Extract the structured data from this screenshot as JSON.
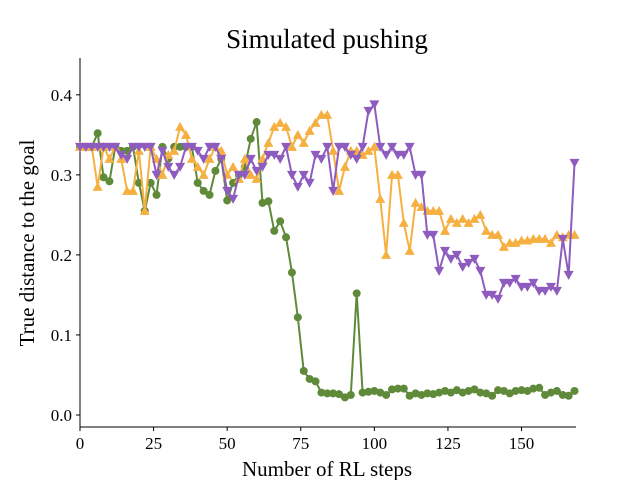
{
  "chart_data": {
    "type": "line",
    "title": "Simulated pushing",
    "xlabel": "Number of RL steps",
    "ylabel": "True distance to the goal",
    "x": [
      0,
      2,
      4,
      6,
      8,
      10,
      12,
      14,
      16,
      18,
      20,
      22,
      24,
      26,
      28,
      30,
      32,
      34,
      36,
      38,
      40,
      42,
      44,
      46,
      48,
      50,
      52,
      54,
      56,
      58,
      60,
      62,
      64,
      66,
      68,
      70,
      72,
      74,
      76,
      78,
      80,
      82,
      84,
      86,
      88,
      90,
      92,
      94,
      96,
      98,
      100,
      102,
      104,
      106,
      108,
      110,
      112,
      114,
      116,
      118,
      120,
      122,
      124,
      126,
      128,
      130,
      132,
      134,
      136,
      138,
      140,
      142,
      144,
      146,
      148,
      150,
      152,
      154,
      156,
      158,
      160,
      162,
      164,
      166,
      168
    ],
    "series": [
      {
        "color": "#5f8a3a",
        "marker": "circle",
        "values": [
          0.335,
          0.335,
          0.335,
          0.352,
          0.297,
          0.292,
          0.335,
          0.33,
          0.33,
          0.335,
          0.29,
          0.255,
          0.29,
          0.275,
          0.335,
          0.32,
          0.335,
          0.335,
          0.335,
          0.335,
          0.29,
          0.28,
          0.275,
          0.305,
          0.32,
          0.268,
          0.29,
          0.3,
          0.31,
          0.345,
          0.366,
          0.265,
          0.267,
          0.23,
          0.242,
          0.222,
          0.178,
          0.122,
          0.055,
          0.045,
          0.042,
          0.028,
          0.027,
          0.027,
          0.026,
          0.022,
          0.025,
          0.152,
          0.028,
          0.029,
          0.03,
          0.028,
          0.025,
          0.032,
          0.033,
          0.033,
          0.024,
          0.027,
          0.025,
          0.027,
          0.026,
          0.028,
          0.03,
          0.028,
          0.031,
          0.028,
          0.03,
          0.032,
          0.028,
          0.027,
          0.024,
          0.031,
          0.03,
          0.027,
          0.03,
          0.031,
          0.03,
          0.033,
          0.034,
          0.025,
          0.028,
          0.03,
          0.025,
          0.024,
          0.03
        ]
      },
      {
        "color": "#f5b041",
        "marker": "triangle-up",
        "values": [
          0.335,
          0.335,
          0.335,
          0.285,
          0.335,
          0.32,
          0.335,
          0.32,
          0.28,
          0.28,
          0.33,
          0.255,
          0.335,
          0.32,
          0.3,
          0.325,
          0.33,
          0.36,
          0.35,
          0.32,
          0.31,
          0.3,
          0.32,
          0.335,
          0.33,
          0.3,
          0.31,
          0.295,
          0.32,
          0.3,
          0.295,
          0.32,
          0.34,
          0.36,
          0.365,
          0.36,
          0.335,
          0.35,
          0.34,
          0.355,
          0.365,
          0.375,
          0.375,
          0.33,
          0.28,
          0.31,
          0.33,
          0.33,
          0.325,
          0.33,
          0.335,
          0.27,
          0.2,
          0.3,
          0.3,
          0.24,
          0.205,
          0.265,
          0.26,
          0.255,
          0.255,
          0.255,
          0.23,
          0.245,
          0.24,
          0.245,
          0.24,
          0.245,
          0.25,
          0.23,
          0.225,
          0.225,
          0.21,
          0.215,
          0.215,
          0.218,
          0.218,
          0.22,
          0.22,
          0.22,
          0.215,
          0.225,
          0.222,
          0.225,
          0.225
        ]
      },
      {
        "color": "#8e5bbf",
        "marker": "triangle-down",
        "values": [
          0.335,
          0.335,
          0.335,
          0.335,
          0.335,
          0.335,
          0.335,
          0.325,
          0.32,
          0.335,
          0.335,
          0.335,
          0.335,
          0.3,
          0.33,
          0.31,
          0.3,
          0.31,
          0.335,
          0.335,
          0.33,
          0.32,
          0.335,
          0.335,
          0.32,
          0.28,
          0.27,
          0.3,
          0.3,
          0.32,
          0.305,
          0.31,
          0.325,
          0.325,
          0.32,
          0.335,
          0.3,
          0.285,
          0.3,
          0.29,
          0.325,
          0.32,
          0.335,
          0.28,
          0.335,
          0.335,
          0.325,
          0.32,
          0.335,
          0.38,
          0.388,
          0.335,
          0.325,
          0.335,
          0.325,
          0.325,
          0.335,
          0.3,
          0.3,
          0.225,
          0.225,
          0.18,
          0.205,
          0.195,
          0.2,
          0.185,
          0.19,
          0.195,
          0.18,
          0.15,
          0.15,
          0.145,
          0.165,
          0.165,
          0.17,
          0.16,
          0.16,
          0.165,
          0.155,
          0.155,
          0.16,
          0.155,
          0.22,
          0.175,
          0.315
        ]
      }
    ],
    "xlim": [
      0,
      168.5
    ],
    "ylim": [
      -0.015,
      0.446
    ],
    "xticks": [
      0,
      25,
      50,
      75,
      100,
      125,
      150
    ],
    "yticks": [
      {
        "value": 0,
        "label": "0.0"
      },
      0.1,
      0.2,
      0.3,
      0.4
    ]
  }
}
